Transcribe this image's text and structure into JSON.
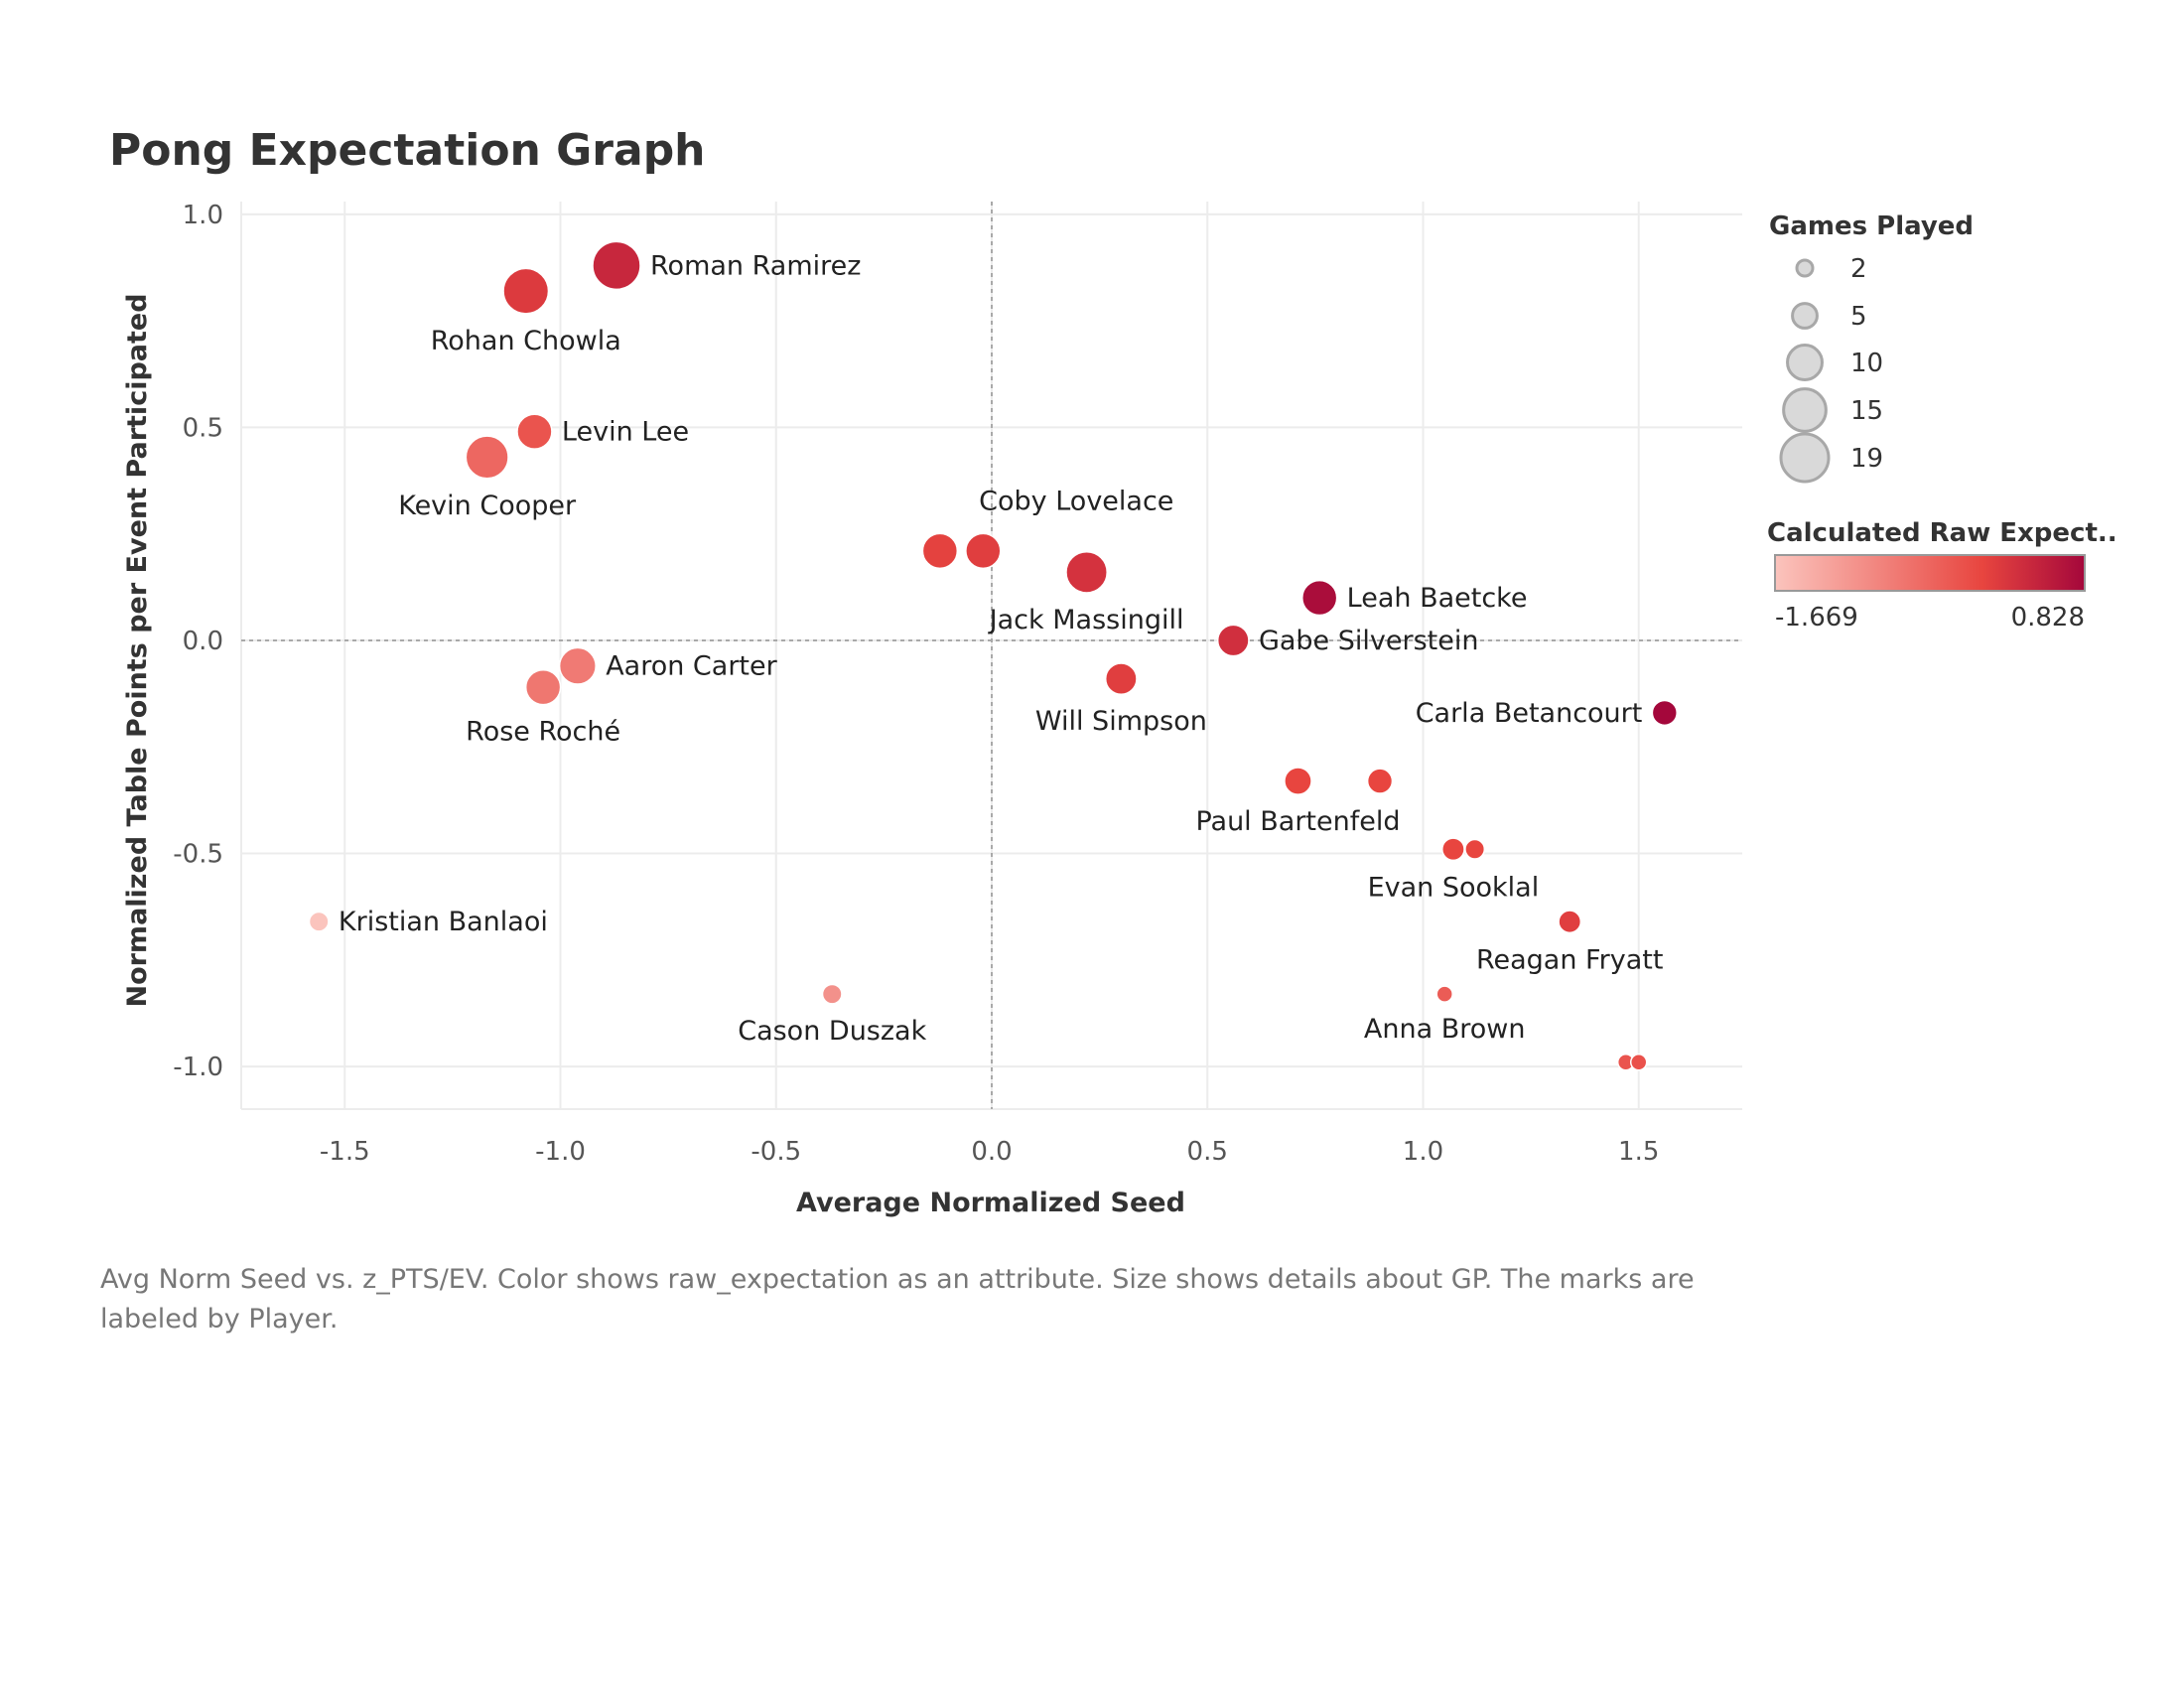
{
  "title": "Pong Expectation Graph",
  "caption": {
    "line1": "Avg Norm Seed vs. z_PTS/EV.  Color shows raw_expectation as an attribute.  Size shows details about GP.  The marks are",
    "line2": "labeled by Player."
  },
  "legend": {
    "size_title": "Games Played",
    "size_entries": [
      2,
      5,
      10,
      15,
      19
    ],
    "color_title": "Calculated Raw Expect..",
    "color_min_label": "-1.669",
    "color_max_label": "0.828"
  },
  "colors": {
    "low": "#fbc4bd",
    "mid": "#e8453f",
    "high": "#a4073b",
    "grid": "#ececec",
    "zero_line": "#a9a9a9"
  },
  "chart_data": {
    "type": "scatter",
    "xlabel": "Average Normalized Seed",
    "ylabel": "Normalized Table Points per Event Participated",
    "xlim": [
      -1.74,
      1.74
    ],
    "ylim": [
      -1.1,
      1.03
    ],
    "xticks": [
      -1.5,
      -1.0,
      -0.5,
      0.0,
      0.5,
      1.0,
      1.5
    ],
    "yticks": [
      -1.0,
      -0.5,
      0.0,
      0.5,
      1.0
    ],
    "xtick_labels": [
      "-1.5",
      "-1.0",
      "-0.5",
      "0.0",
      "0.5",
      "1.0",
      "1.5"
    ],
    "ytick_labels": [
      "-1.0",
      "-0.5",
      "0.0",
      "0.5",
      "1.0"
    ],
    "grid": true,
    "legend": "right",
    "color_range": [
      -1.669,
      0.828
    ],
    "size_range": [
      2,
      19
    ],
    "points": [
      {
        "x": -0.87,
        "y": 0.88,
        "gp": 19,
        "raw": 0.4,
        "label": "Roman Ramirez",
        "pos": "right"
      },
      {
        "x": -1.08,
        "y": 0.82,
        "gp": 17,
        "raw": 0.15,
        "label": "Rohan Chowla",
        "pos": "below"
      },
      {
        "x": -1.06,
        "y": 0.49,
        "gp": 10,
        "raw": -0.2,
        "label": "Levin Lee",
        "pos": "right"
      },
      {
        "x": -1.17,
        "y": 0.43,
        "gp": 15,
        "raw": -0.45,
        "label": "Kevin Cooper",
        "pos": "below"
      },
      {
        "x": -0.12,
        "y": 0.21,
        "gp": 10,
        "raw": 0.05,
        "label": "",
        "pos": "none"
      },
      {
        "x": -0.02,
        "y": 0.21,
        "gp": 10,
        "raw": 0.1,
        "label": "Coby Lovelace",
        "pos": "above"
      },
      {
        "x": 0.22,
        "y": 0.16,
        "gp": 14,
        "raw": 0.25,
        "label": "Jack Massingill",
        "pos": "below"
      },
      {
        "x": 0.76,
        "y": 0.1,
        "gp": 10,
        "raw": 0.75,
        "label": "Leah Baetcke",
        "pos": "right"
      },
      {
        "x": 0.56,
        "y": 0.0,
        "gp": 8,
        "raw": 0.3,
        "label": "Gabe Silverstein",
        "pos": "right"
      },
      {
        "x": -0.96,
        "y": -0.06,
        "gp": 11,
        "raw": -0.7,
        "label": "Aaron Carter",
        "pos": "right"
      },
      {
        "x": -1.04,
        "y": -0.11,
        "gp": 10,
        "raw": -0.65,
        "label": "Rose Roché",
        "pos": "below"
      },
      {
        "x": 0.3,
        "y": -0.09,
        "gp": 8,
        "raw": 0.1,
        "label": "Will Simpson",
        "pos": "below"
      },
      {
        "x": 1.56,
        "y": -0.17,
        "gp": 5,
        "raw": 0.828,
        "label": "Carla Betancourt",
        "pos": "left"
      },
      {
        "x": 0.71,
        "y": -0.33,
        "gp": 6,
        "raw": 0.0,
        "label": "Paul Bartenfeld",
        "pos": "below"
      },
      {
        "x": 0.9,
        "y": -0.33,
        "gp": 5,
        "raw": 0.0,
        "label": "",
        "pos": "none"
      },
      {
        "x": 1.07,
        "y": -0.49,
        "gp": 4,
        "raw": 0.0,
        "label": "Evan Sooklal",
        "pos": "below"
      },
      {
        "x": 1.12,
        "y": -0.49,
        "gp": 3,
        "raw": 0.0,
        "label": "",
        "pos": "none"
      },
      {
        "x": -1.56,
        "y": -0.66,
        "gp": 3,
        "raw": -1.669,
        "label": "Kristian Banlaoi",
        "pos": "right"
      },
      {
        "x": 1.34,
        "y": -0.66,
        "gp": 4,
        "raw": 0.1,
        "label": "Reagan Fryatt",
        "pos": "below"
      },
      {
        "x": -0.37,
        "y": -0.83,
        "gp": 3,
        "raw": -1.0,
        "label": "Cason Duszak",
        "pos": "below"
      },
      {
        "x": 1.05,
        "y": -0.83,
        "gp": 2,
        "raw": -0.3,
        "label": "Anna Brown",
        "pos": "below"
      },
      {
        "x": 1.47,
        "y": -0.99,
        "gp": 2,
        "raw": -0.2,
        "label": "",
        "pos": "none"
      },
      {
        "x": 1.5,
        "y": -0.99,
        "gp": 2,
        "raw": -0.15,
        "label": "",
        "pos": "none"
      }
    ]
  }
}
